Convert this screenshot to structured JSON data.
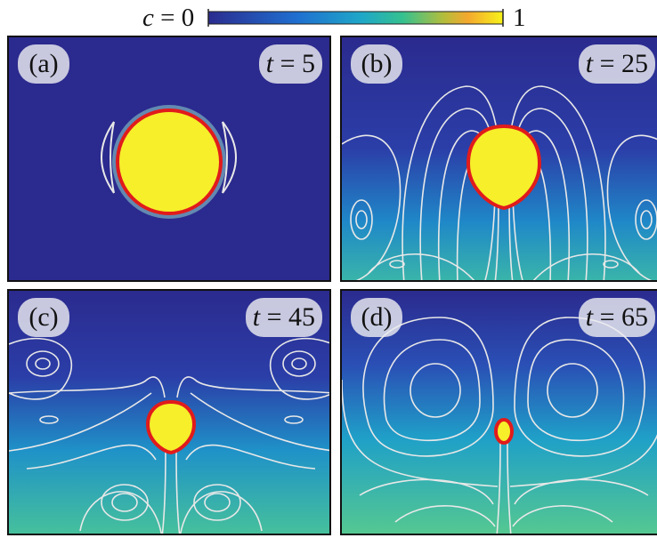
{
  "colorbar": {
    "variable": "c",
    "low_text": " = 0",
    "high_text": "1",
    "colormap": [
      "#2b2c8f",
      "#1f6fd0",
      "#1fa7c8",
      "#35c18f",
      "#b5bd3b",
      "#f4a82e",
      "#f7f21a"
    ]
  },
  "panels": [
    {
      "label": "(a)",
      "t_var": "t",
      "t_text": " = 5"
    },
    {
      "label": "(b)",
      "t_var": "t",
      "t_text": " = 25"
    },
    {
      "label": "(c)",
      "t_var": "t",
      "t_text": " = 45"
    },
    {
      "label": "(d)",
      "t_var": "t",
      "t_text": " = 65"
    }
  ],
  "colors": {
    "background_low": "#2b2a8e",
    "droplet_fill": "#f6ef2a",
    "interface": "#e11b1b",
    "streamline": "#e8e8e8",
    "bottom_high": "#3bb7a8"
  }
}
